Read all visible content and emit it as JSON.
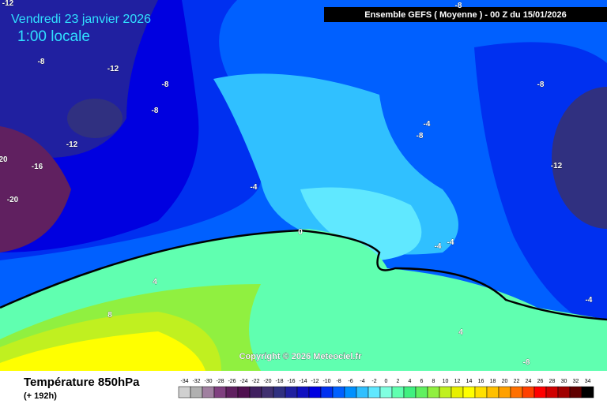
{
  "header": {
    "date": "Vendredi 23 janvier 2026",
    "time": "1:00 locale",
    "model": "Ensemble GEFS  ( Moyenne )  -  00 Z du 15/01/2026"
  },
  "copyright": "Copyright © 2026 Meteociel.fr",
  "footer": {
    "title": "Température 850hPa",
    "lead": "(+ 192h)"
  },
  "contour_labels": [
    "-12",
    "-8",
    "-8",
    "-12",
    "-8",
    "-8",
    "-8",
    "-4",
    "-8",
    "-12",
    "-16",
    "20",
    "-20",
    "-12",
    "-4",
    "0",
    "-4",
    "-4",
    "4",
    "8",
    "-4",
    "4",
    "-8"
  ],
  "colorbar": {
    "ticks": [
      -34,
      -32,
      -30,
      -28,
      -26,
      -24,
      -22,
      -20,
      -18,
      -16,
      -14,
      -12,
      -10,
      -8,
      -6,
      -4,
      -2,
      0,
      2,
      4,
      6,
      8,
      10,
      12,
      14,
      16,
      18,
      20,
      22,
      24,
      26,
      28,
      30,
      32,
      34
    ],
    "colors": [
      "#d0d0d0",
      "#b0b0b0",
      "#a080a0",
      "#804080",
      "#602060",
      "#501050",
      "#402060",
      "#403070",
      "#303080",
      "#2020a0",
      "#1010c0",
      "#0000e0",
      "#0030f0",
      "#0060ff",
      "#0090ff",
      "#30c0ff",
      "#60e8ff",
      "#80ffe0",
      "#60ffb0",
      "#40f080",
      "#60f060",
      "#90f040",
      "#c0f020",
      "#e8f000",
      "#ffff00",
      "#ffe000",
      "#ffc000",
      "#ffa000",
      "#ff7000",
      "#ff4000",
      "#ff0000",
      "#d00000",
      "#a00000",
      "#600000",
      "#000000"
    ]
  }
}
